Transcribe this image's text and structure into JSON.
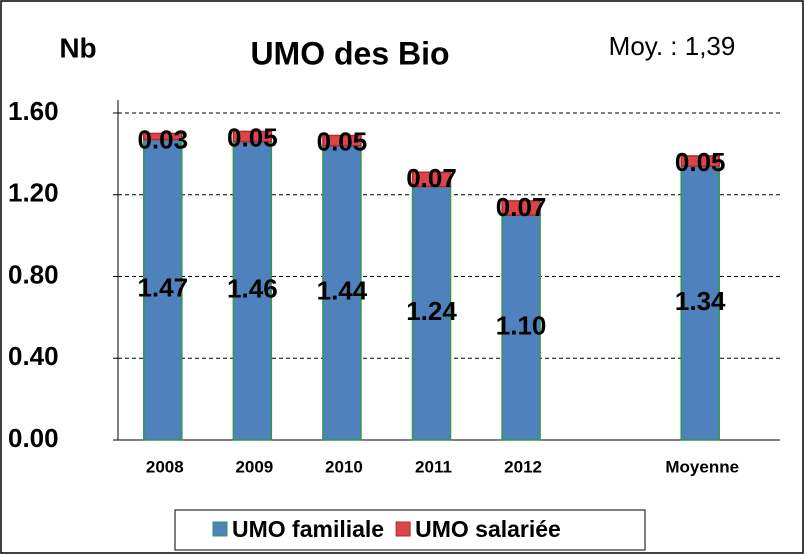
{
  "chart_data": {
    "type": "bar",
    "stacked": true,
    "title": "UMO des Bio",
    "y_label": "Nb",
    "annotation": "Moy. : 1,39",
    "categories": [
      "2008",
      "2009",
      "2010",
      "2011",
      "2012",
      null,
      "Moyenne"
    ],
    "series": [
      {
        "name": "UMO familiale",
        "color": "#4f81bd",
        "values": [
          1.47,
          1.46,
          1.44,
          1.24,
          1.1,
          null,
          1.34
        ],
        "value_labels": [
          "1.47",
          "1.46",
          "1.44",
          "1.24",
          "1.10",
          null,
          "1.34"
        ]
      },
      {
        "name": "UMO salariée",
        "color": "#d9464a",
        "values": [
          0.03,
          0.05,
          0.05,
          0.07,
          0.07,
          null,
          0.05
        ],
        "value_labels": [
          "0.03",
          "0.05",
          "0.05",
          "0.07",
          "0.07",
          null,
          "0.05"
        ]
      }
    ],
    "ylim": [
      0,
      1.6
    ],
    "yticks": [
      {
        "value": 0,
        "label": "0.00"
      },
      {
        "value": 0.4,
        "label": "0.40"
      },
      {
        "value": 0.8,
        "label": "0.80"
      },
      {
        "value": 1.2,
        "label": "1.20"
      },
      {
        "value": 1.6,
        "label": "1.60"
      }
    ],
    "grid": true,
    "legend": "bottom"
  }
}
